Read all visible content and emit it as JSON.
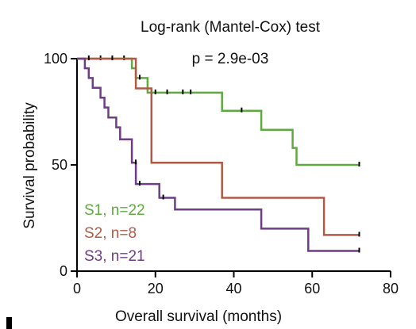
{
  "chart_data": {
    "type": "line",
    "title": "Log-rank (Mantel-Cox) test",
    "subtitle": "p = 2.9e-03",
    "xlabel": "Overall survival (months)",
    "ylabel": "Survival probability",
    "xlim": [
      0,
      80
    ],
    "ylim": [
      0,
      100
    ],
    "xticks": [
      0,
      20,
      40,
      60,
      80
    ],
    "yticks": [
      0,
      50,
      100
    ],
    "grid": false,
    "legend_position": "bottom-left",
    "series": [
      {
        "name": "S1, n=22",
        "color": "#5faa40",
        "points": [
          [
            0,
            100
          ],
          [
            14,
            100
          ],
          [
            14,
            95.5
          ],
          [
            15,
            95.5
          ],
          [
            15,
            90.9
          ],
          [
            18,
            90.9
          ],
          [
            18,
            84
          ],
          [
            37,
            84
          ],
          [
            37,
            75.5
          ],
          [
            47,
            75.5
          ],
          [
            47,
            66.5
          ],
          [
            55,
            66.5
          ],
          [
            55,
            58
          ],
          [
            56,
            58
          ],
          [
            56,
            50
          ],
          [
            72,
            50
          ]
        ],
        "censored": [
          [
            6,
            100
          ],
          [
            12,
            100
          ],
          [
            16,
            90.9
          ],
          [
            20,
            84
          ],
          [
            23,
            84
          ],
          [
            27,
            84
          ],
          [
            29,
            84
          ],
          [
            42,
            75.5
          ],
          [
            72,
            50
          ]
        ]
      },
      {
        "name": "S2, n=8",
        "color": "#b05a46",
        "points": [
          [
            0,
            100
          ],
          [
            15,
            100
          ],
          [
            15,
            86
          ],
          [
            19,
            86
          ],
          [
            19,
            51
          ],
          [
            37,
            51
          ],
          [
            37,
            34.5
          ],
          [
            63,
            34.5
          ],
          [
            63,
            17
          ],
          [
            72,
            17
          ]
        ],
        "censored": [
          [
            3,
            100
          ],
          [
            9,
            100
          ],
          [
            72,
            17
          ]
        ]
      },
      {
        "name": "S3, n=21",
        "color": "#6e3d86",
        "points": [
          [
            0,
            100
          ],
          [
            2,
            100
          ],
          [
            2,
            95.5
          ],
          [
            3,
            95.5
          ],
          [
            3,
            90.9
          ],
          [
            4,
            90.9
          ],
          [
            4,
            86.3
          ],
          [
            6,
            86.3
          ],
          [
            6,
            81.6
          ],
          [
            7,
            81.6
          ],
          [
            7,
            77
          ],
          [
            8,
            77
          ],
          [
            8,
            72.3
          ],
          [
            10,
            72.3
          ],
          [
            10,
            67.7
          ],
          [
            11,
            67.7
          ],
          [
            11,
            62
          ],
          [
            14,
            62
          ],
          [
            14,
            51
          ],
          [
            15,
            51
          ],
          [
            15,
            41
          ],
          [
            21,
            41
          ],
          [
            21,
            34.5
          ],
          [
            25,
            34.5
          ],
          [
            25,
            29
          ],
          [
            47,
            29
          ],
          [
            47,
            20
          ],
          [
            59,
            20
          ],
          [
            59,
            9.5
          ],
          [
            72,
            9.5
          ]
        ],
        "censored": [
          [
            15,
            51
          ],
          [
            16,
            41
          ],
          [
            22,
            34.5
          ],
          [
            72,
            9.5
          ]
        ]
      }
    ],
    "tick_labels_x": [
      "0",
      "20",
      "40",
      "60",
      "80"
    ],
    "tick_labels_y": [
      "0",
      "50",
      "100"
    ]
  }
}
